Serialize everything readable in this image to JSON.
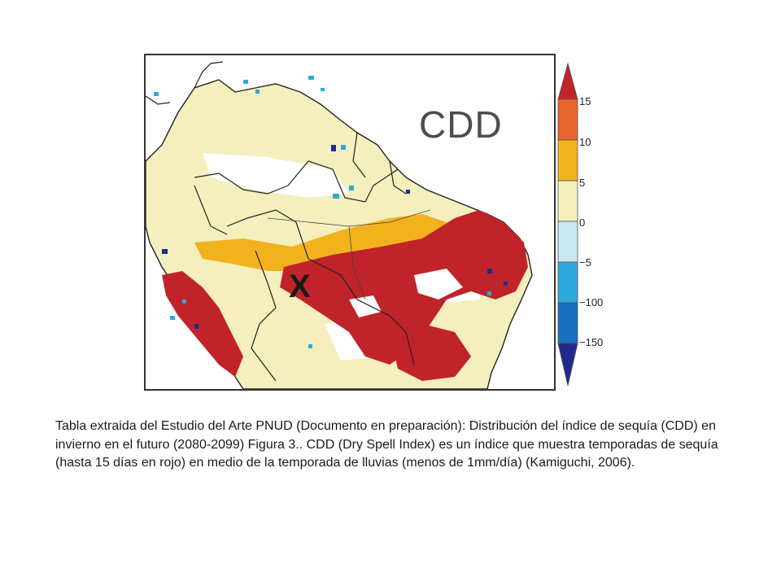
{
  "map": {
    "title": "CDD",
    "marker": "X"
  },
  "legend": {
    "ticks": [
      "15",
      "10",
      "5",
      "0",
      "−5",
      "−100",
      "−150"
    ],
    "colors": [
      "#c0232a",
      "#e8652f",
      "#f2b21e",
      "#f6efbd",
      "#c9e6f1",
      "#2fa8df",
      "#1a6fbf",
      "#202a8c"
    ]
  },
  "caption": {
    "text": "Tabla  extraida del Estudio del Arte PNUD (Documento en preparación): Distribución del índice de sequía (CDD) en invierno en el futuro (2080-2099) Figura 3.. CDD (Dry Spell Index) es un índice que muestra temporadas de sequía (hasta 15 días en rojo) en medio de la temporada de lluvias (menos de 1mm/día) (Kamiguchi, 2006)."
  }
}
